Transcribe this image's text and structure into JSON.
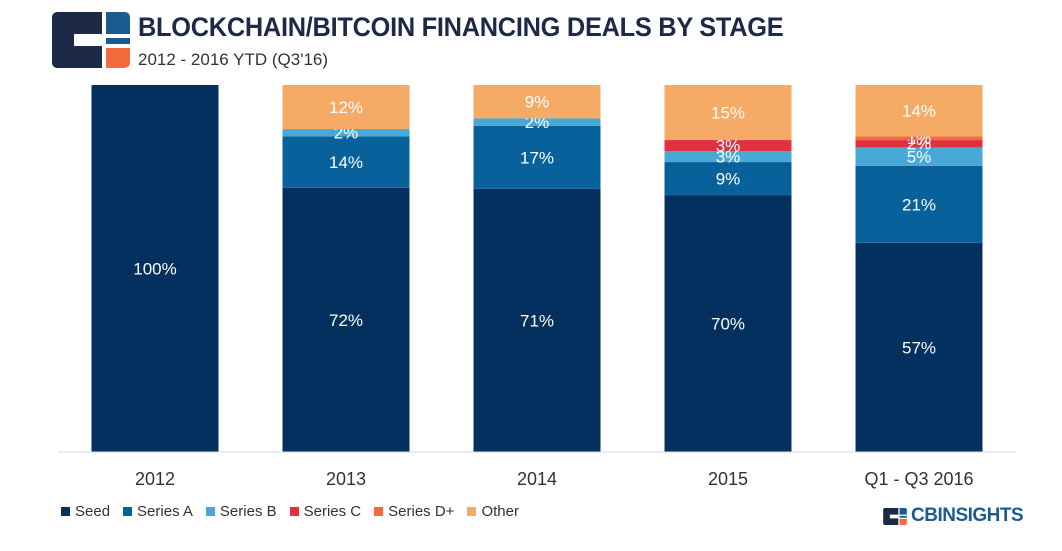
{
  "header": {
    "title": "BLOCKCHAIN/BITCOIN FINANCING DEALS BY STAGE",
    "subtitle": "2012 - 2016 YTD (Q3'16)"
  },
  "brand": {
    "name": "CBINSIGHTS"
  },
  "colors": {
    "Seed": "#03305e",
    "Series A": "#08619a",
    "Series B": "#48a9d6",
    "Series C": "#e0313f",
    "Series D+": "#f36b3c",
    "Other": "#f5aa66"
  },
  "chart_data": {
    "type": "bar",
    "stacked": true,
    "normalized": true,
    "title": "BLOCKCHAIN/BITCOIN FINANCING DEALS BY STAGE",
    "subtitle": "2012 - 2016 YTD (Q3'16)",
    "xlabel": "",
    "ylabel": "",
    "ylim": [
      0,
      100
    ],
    "grid": false,
    "legend_position": "bottom-left",
    "categories": [
      "2012",
      "2013",
      "2014",
      "2015",
      "Q1 - Q3 2016"
    ],
    "series": [
      {
        "name": "Seed",
        "values": [
          100,
          72,
          71,
          70,
          57
        ]
      },
      {
        "name": "Series A",
        "values": [
          0,
          14,
          17,
          9,
          21
        ]
      },
      {
        "name": "Series B",
        "values": [
          0,
          2,
          2,
          3,
          5
        ]
      },
      {
        "name": "Series C",
        "values": [
          0,
          0,
          0,
          3,
          2
        ]
      },
      {
        "name": "Series D+",
        "values": [
          0,
          0,
          0,
          0,
          1
        ]
      },
      {
        "name": "Other",
        "values": [
          0,
          12,
          9,
          15,
          14
        ]
      }
    ],
    "labels": [
      [
        "100%",
        "",
        "",
        "",
        "",
        ""
      ],
      [
        "72%",
        "14%",
        "2%",
        "",
        "",
        "12%"
      ],
      [
        "71%",
        "17%",
        "2%",
        "",
        "",
        "9%"
      ],
      [
        "70%",
        "9%",
        "3%",
        "3%",
        "",
        "15%"
      ],
      [
        "57%",
        "21%",
        "5%",
        "2%",
        "1%",
        "14%"
      ]
    ]
  }
}
